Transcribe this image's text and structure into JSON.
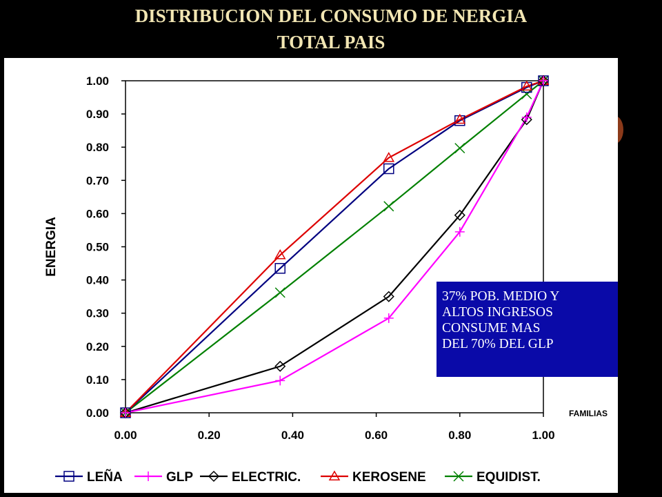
{
  "title_line1": "DISTRIBUCION  DEL CONSUMO  DE NERGIA",
  "title_line2": "TOTAL  PAIS",
  "annotation": [
    "37% POB.  MEDIO Y",
    "ALTOS INGRESOS",
    "CONSUME MAS",
    "DEL 70% DEL GLP"
  ],
  "colors": {
    "background": "#000000",
    "title": "#f2e6b3",
    "annotation_box": "#0a0aa8",
    "accent_blob": "#8b3a1a"
  },
  "chart_data": {
    "type": "line",
    "xlabel": "FAMILIAS",
    "ylabel": "ENERGIA",
    "xlim": [
      0,
      1
    ],
    "ylim": [
      0,
      1
    ],
    "xticks": [
      "0.00",
      "0.20",
      "0.40",
      "0.60",
      "0.80",
      "1.00"
    ],
    "yticks": [
      "0.00",
      "0.10",
      "0.20",
      "0.30",
      "0.40",
      "0.50",
      "0.60",
      "0.70",
      "0.80",
      "0.90",
      "1.00"
    ],
    "grid": false,
    "legend_position": "bottom",
    "series": [
      {
        "name": "LEÑA",
        "color": "#000080",
        "marker": "square",
        "x": [
          0,
          0.37,
          0.63,
          0.8,
          0.96,
          1.0
        ],
        "y": [
          0,
          0.435,
          0.735,
          0.88,
          0.98,
          1.0
        ]
      },
      {
        "name": "GLP",
        "color": "#ff00ff",
        "marker": "plus",
        "x": [
          0,
          0.37,
          0.63,
          0.8,
          0.96,
          1.0
        ],
        "y": [
          0,
          0.097,
          0.285,
          0.545,
          0.89,
          1.0
        ]
      },
      {
        "name": "ELECTRIC.",
        "color": "#000000",
        "marker": "diamond",
        "x": [
          0,
          0.37,
          0.63,
          0.8,
          0.96,
          1.0
        ],
        "y": [
          0,
          0.14,
          0.35,
          0.595,
          0.883,
          1.0
        ]
      },
      {
        "name": "KEROSENE",
        "color": "#dd0000",
        "marker": "triangle",
        "x": [
          0,
          0.37,
          0.63,
          0.8,
          0.96,
          1.0
        ],
        "y": [
          0,
          0.475,
          0.768,
          0.883,
          0.983,
          1.0
        ]
      },
      {
        "name": "EQUIDIST.",
        "color": "#008000",
        "marker": "x",
        "x": [
          0,
          0.37,
          0.63,
          0.8,
          0.96,
          1.0
        ],
        "y": [
          0,
          0.362,
          0.622,
          0.797,
          0.96,
          1.0
        ]
      }
    ]
  }
}
